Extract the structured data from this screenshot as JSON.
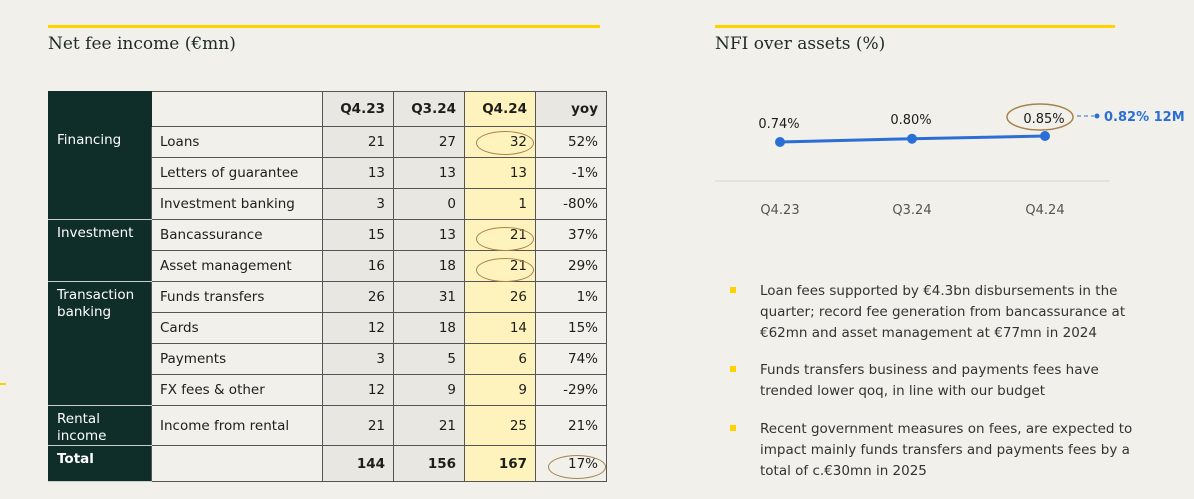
{
  "left": {
    "title": "Net fee income (€mn)",
    "headers": [
      "Q4.23",
      "Q3.24",
      "Q4.24",
      "yoy"
    ],
    "categories": [
      "Financing",
      "Investment",
      "Transaction banking",
      "Rental income",
      "Total"
    ],
    "rows": [
      {
        "item": "Loans",
        "v": [
          "21",
          "27",
          "32",
          "52%"
        ]
      },
      {
        "item": "Letters of guarantee",
        "v": [
          "13",
          "13",
          "13",
          "-1%"
        ]
      },
      {
        "item": "Investment banking",
        "v": [
          "3",
          "0",
          "1",
          "-80%"
        ]
      },
      {
        "item": "Bancassurance",
        "v": [
          "15",
          "13",
          "21",
          "37%"
        ]
      },
      {
        "item": "Asset management",
        "v": [
          "16",
          "18",
          "21",
          "29%"
        ]
      },
      {
        "item": "Funds transfers",
        "v": [
          "26",
          "31",
          "26",
          "1%"
        ]
      },
      {
        "item": "Cards",
        "v": [
          "12",
          "18",
          "14",
          "15%"
        ]
      },
      {
        "item": "Payments",
        "v": [
          "3",
          "5",
          "6",
          "74%"
        ]
      },
      {
        "item": "FX fees & other",
        "v": [
          "12",
          "9",
          "9",
          "-29%"
        ]
      },
      {
        "item": "Income from rental",
        "v": [
          "21",
          "21",
          "25",
          "21%"
        ]
      },
      {
        "item": "",
        "v": [
          "144",
          "156",
          "167",
          "17%"
        ]
      }
    ]
  },
  "chart_data": {
    "type": "line",
    "title": "NFI over assets (%)",
    "categories": [
      "Q4.23",
      "Q3.24",
      "Q4.24"
    ],
    "values": [
      0.74,
      0.8,
      0.85
    ],
    "labels": [
      "0.74%",
      "0.80%",
      "0.85%"
    ],
    "annotation": "0.82% 12M",
    "color": "#2b6fd6"
  },
  "bullets": [
    "Loan fees supported by €4.3bn disbursements in the quarter; record fee generation from bancassurance at €62mn and asset management at €77mn in 2024",
    "Funds transfers business and payments fees have trended lower qoq, in line with our budget",
    "Recent government measures on fees, are expected to impact mainly funds transfers and payments fees by a total of c.€30mn in 2025"
  ]
}
